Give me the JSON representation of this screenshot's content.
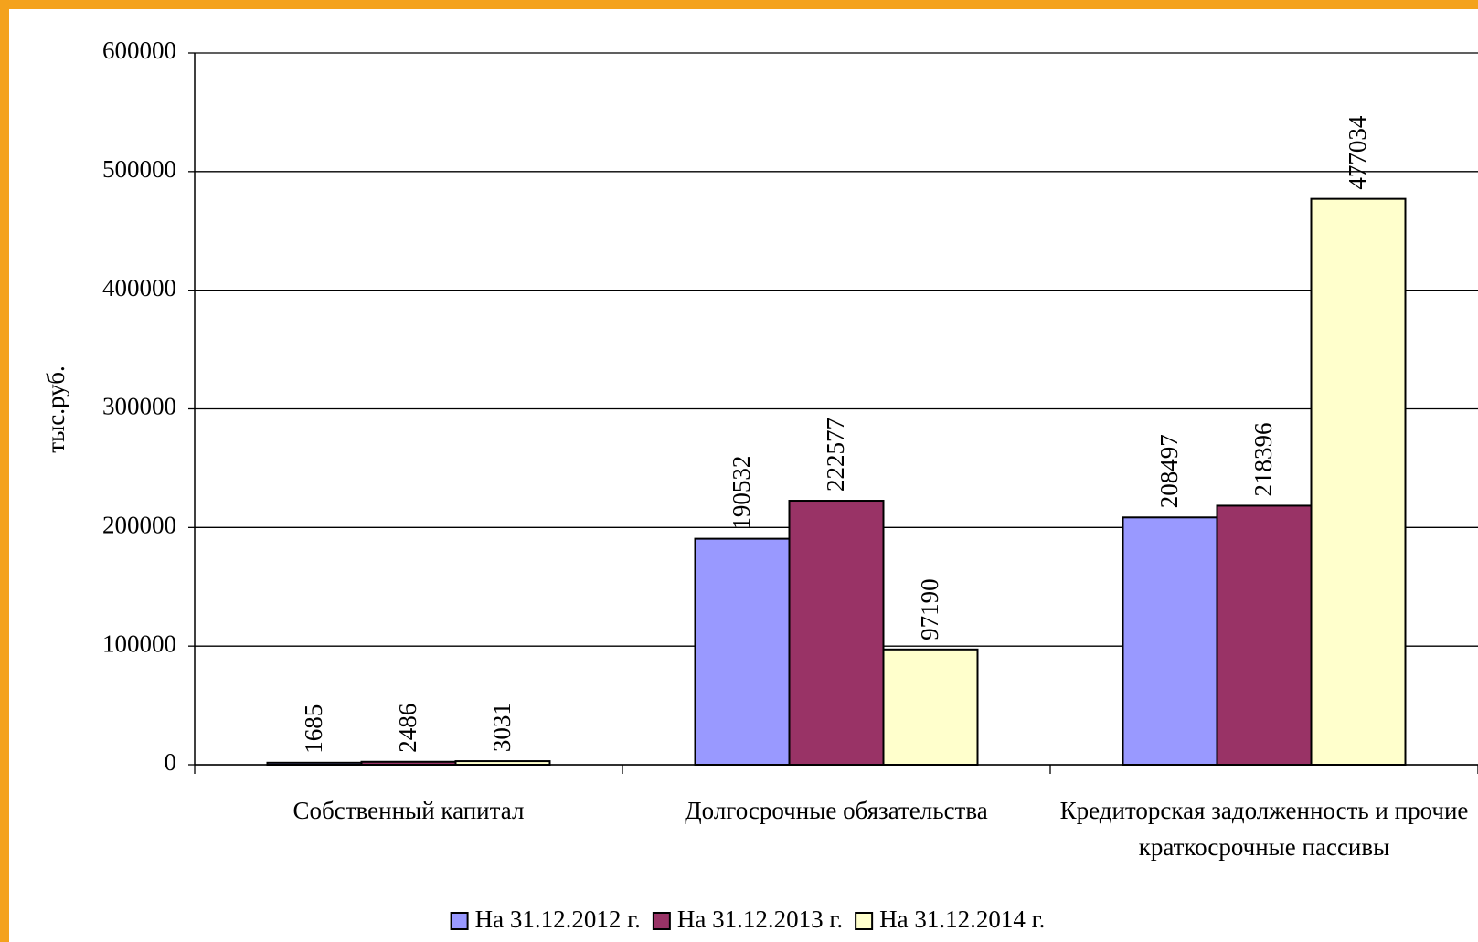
{
  "chart_data": {
    "type": "bar",
    "y_label": "тыс.руб.",
    "categories": [
      "Собственный капитал",
      "Долгосрочные обязательства",
      "Кредиторская задолженность и прочие краткосрочные пассивы"
    ],
    "series": [
      {
        "name": "На 31.12.2012 г.",
        "color": "#9999ff",
        "values": [
          1685,
          190532,
          208497
        ]
      },
      {
        "name": "На 31.12.2013 г.",
        "color": "#993366",
        "values": [
          2486,
          222577,
          218396
        ]
      },
      {
        "name": "На 31.12.2014 г.",
        "color": "#ffffcc",
        "values": [
          3031,
          97190,
          477034
        ]
      }
    ],
    "ylim": [
      0,
      600000
    ],
    "yticks": [
      0,
      100000,
      200000,
      300000,
      400000,
      500000,
      600000
    ],
    "grid": true,
    "legend": "bottom"
  }
}
